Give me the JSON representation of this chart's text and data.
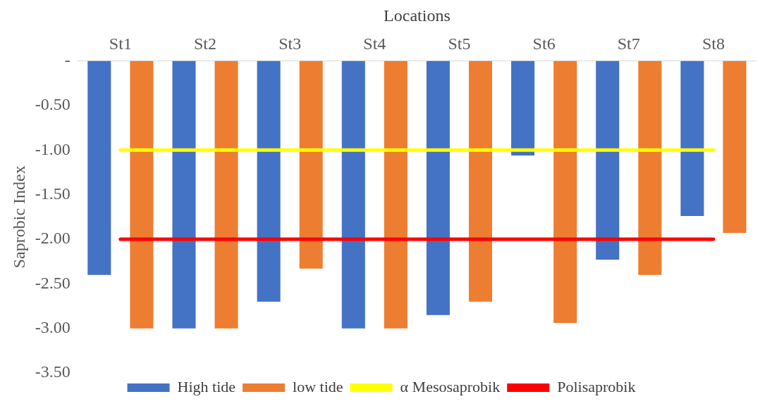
{
  "chart_data": {
    "type": "bar",
    "xlabel": "Locations",
    "ylabel": "Saprobic Index",
    "categories": [
      "St1",
      "St2",
      "St3",
      "St4",
      "St5",
      "St6",
      "St7",
      "St8"
    ],
    "series": [
      {
        "name": "High tide",
        "color": "#4472c4",
        "values": [
          -2.4,
          -3,
          -2.7,
          -3,
          -2.85,
          -1.06,
          -2.23,
          -1.74
        ]
      },
      {
        "name": "low tide",
        "color": "#ed7d31",
        "values": [
          -3,
          -3,
          -2.33,
          -3,
          -2.7,
          -2.94,
          -2.4,
          -1.93
        ]
      },
      {
        "name": "α Mesosaprobik",
        "type": "line",
        "color": "#ffff00",
        "values": [
          -1,
          -1,
          -1,
          -1,
          -1,
          -1,
          -1,
          -1
        ]
      },
      {
        "name": "Polisaprobik",
        "type": "line",
        "color": "#ff0000",
        "values": [
          -2,
          -2,
          -2,
          -2,
          -2,
          -2,
          -2,
          -2
        ]
      }
    ],
    "ylim": [
      -3.5,
      0
    ],
    "yticks": [
      {
        "value": 0,
        "label": "-"
      },
      {
        "value": -0.5,
        "label": "-0.50"
      },
      {
        "value": -1,
        "label": "-1.00"
      },
      {
        "value": -1.5,
        "label": "-1.50"
      },
      {
        "value": -2,
        "label": "-2.00"
      },
      {
        "value": -2.5,
        "label": "-2.50"
      },
      {
        "value": -3,
        "label": "-3.00"
      },
      {
        "value": -3.5,
        "label": "-3.50"
      }
    ],
    "grid": false,
    "legend": "bottom",
    "marker": "none"
  }
}
